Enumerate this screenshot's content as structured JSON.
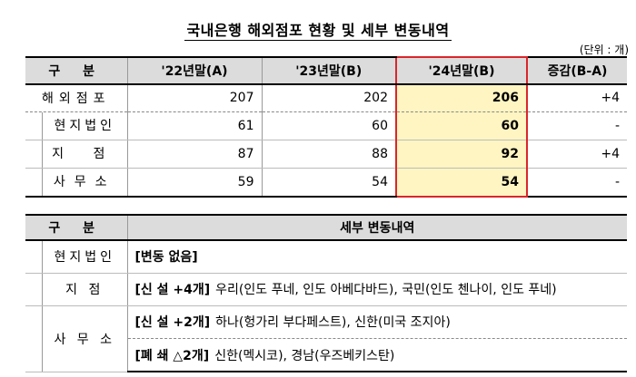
{
  "title": "국내은행 해외점포 현황 및 세부 변동내역",
  "unit": "(단위 : 개)",
  "summary": {
    "headers": [
      "구  분",
      "'22년말(A)",
      "'23년말(B)",
      "'24년말(B)",
      "증감(B-A)"
    ],
    "rows": [
      {
        "label": "해외점포",
        "v22": "207",
        "v23": "202",
        "v24": "206",
        "diff": "+4"
      },
      {
        "label": "현지법인",
        "v22": "61",
        "v23": "60",
        "v24": "60",
        "diff": "-"
      },
      {
        "label": "지  점",
        "v22": "87",
        "v23": "88",
        "v24": "92",
        "diff": "+4"
      },
      {
        "label": "사무소",
        "v22": "59",
        "v23": "54",
        "v24": "54",
        "diff": "-"
      }
    ]
  },
  "details": {
    "headers": [
      "구  분",
      "세부 변동내역"
    ],
    "rows": [
      {
        "category": "현지법인",
        "tag": "[변동 없음]",
        "text": ""
      },
      {
        "category": "지    점",
        "tag": "[신 설  +4개]",
        "text": "우리(인도 푸네, 인도 아베다바드), 국민(인도 첸나이, 인도 푸네)"
      },
      {
        "category": "사 무 소",
        "tag": "[신 설  +2개]",
        "text": "하나(헝가리 부다페스트), 신한(미국 조지아)"
      },
      {
        "category": "",
        "tag": "[폐 쇄  △2개]",
        "text": "신한(멕시코), 경남(우즈베키스탄)"
      }
    ]
  },
  "colors": {
    "highlight_fill": "#fff5c2",
    "highlight_border": "#d9262b",
    "header_fill": "#dcdcdc"
  }
}
